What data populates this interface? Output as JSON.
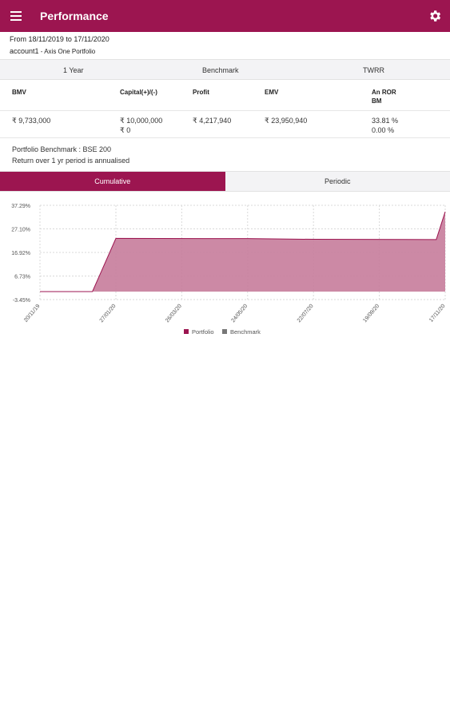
{
  "header": {
    "title": "Performance",
    "menu_icon": "menu-icon",
    "settings_icon": "gear-icon",
    "color": "#9c1550"
  },
  "summary": {
    "period": "From 18/11/2019 to 17/11/2020",
    "account_name": "account1",
    "account_suffix": " - Axis One Portfolio"
  },
  "table": {
    "tabs": [
      "1 Year",
      "Benchmark",
      "TWRR"
    ],
    "columns": [
      "BMV",
      "Capital(+)/(-)",
      "Profit",
      "EMV",
      "An ROR",
      "BM"
    ],
    "row": {
      "bmv": "₹ 9,733,000",
      "capital_1": "₹ 10,000,000",
      "capital_2": "₹ 0",
      "profit": "₹ 4,217,940",
      "emv": "₹ 23,950,940",
      "an_ror": "33.81 %",
      "bm": "0.00 %"
    }
  },
  "notes": {
    "benchmark": "Portfolio Benchmark : BSE 200",
    "annualised": "Return over 1 yr period is annualised"
  },
  "view_tabs": {
    "cumulative": "Cumulative",
    "periodic": "Periodic",
    "active": "Cumulative"
  },
  "chart_data": {
    "type": "area",
    "title": "",
    "xlabel": "",
    "ylabel": "",
    "y_ticks": [
      "37.29%",
      "27.10%",
      "16.92%",
      "6.73%",
      "-3.45%"
    ],
    "ylim": [
      -3.45,
      37.29
    ],
    "x_ticks": [
      "20/11/19",
      "27/01/20",
      "26/03/20",
      "24/05/20",
      "22/07/20",
      "19/09/20",
      "17/11/20"
    ],
    "series": [
      {
        "name": "Portfolio",
        "color": "#9c1550",
        "fill": "#c77c9b",
        "points": [
          [
            "20/11/19",
            0.0
          ],
          [
            "06/01/20",
            0.0
          ],
          [
            "27/01/20",
            23.0
          ],
          [
            "24/05/20",
            22.9
          ],
          [
            "22/07/20",
            22.6
          ],
          [
            "09/11/20",
            22.5
          ],
          [
            "17/11/20",
            34.5
          ]
        ]
      },
      {
        "name": "Benchmark",
        "color": "#777777",
        "points": []
      }
    ],
    "legend": {
      "position": "bottom",
      "items": [
        "Portfolio",
        "Benchmark"
      ]
    },
    "grid": true
  }
}
